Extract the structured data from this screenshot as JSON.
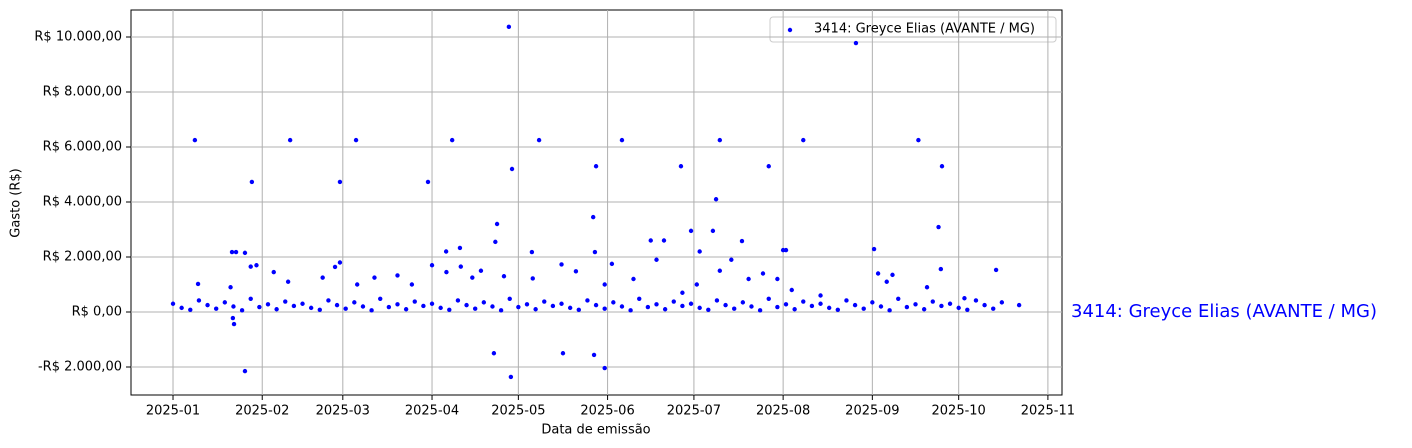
{
  "chart_data": {
    "type": "scatter",
    "xlabel": "Data de emissão",
    "ylabel": "Gasto (R$)",
    "annotation": "3414: Greyce Elias (AVANTE / MG)",
    "grid": true,
    "legend": "upper right",
    "xlim": [
      -14.6,
      308.9
    ],
    "ylim": [
      -3018,
      10982
    ],
    "xticks": [
      {
        "value": 0,
        "label": "2025-01"
      },
      {
        "value": 31,
        "label": "2025-02"
      },
      {
        "value": 59,
        "label": "2025-03"
      },
      {
        "value": 90,
        "label": "2025-04"
      },
      {
        "value": 120,
        "label": "2025-05"
      },
      {
        "value": 151,
        "label": "2025-06"
      },
      {
        "value": 181,
        "label": "2025-07"
      },
      {
        "value": 212,
        "label": "2025-08"
      },
      {
        "value": 243,
        "label": "2025-09"
      },
      {
        "value": 273,
        "label": "2025-10"
      },
      {
        "value": 304,
        "label": "2025-11"
      }
    ],
    "yticks": [
      {
        "value": -2000,
        "label": "-R$ 2.000,00"
      },
      {
        "value": 0,
        "label": "R$ 0,00"
      },
      {
        "value": 2000,
        "label": "R$ 2.000,00"
      },
      {
        "value": 4000,
        "label": "R$ 4.000,00"
      },
      {
        "value": 6000,
        "label": "R$ 6.000,00"
      },
      {
        "value": 8000,
        "label": "R$ 8.000,00"
      },
      {
        "value": 10000,
        "label": "R$ 10.000,00"
      }
    ],
    "series": [
      {
        "name": "3414: Greyce Elias (AVANTE / MG)",
        "color": "#0000ff",
        "x": [
          0,
          3,
          6,
          9,
          12,
          15,
          18,
          21,
          24,
          27,
          30,
          33,
          36,
          39,
          42,
          45,
          48,
          51,
          54,
          57,
          60,
          63,
          66,
          69,
          72,
          75,
          78,
          81,
          84,
          87,
          90,
          93,
          96,
          99,
          102,
          105,
          108,
          111,
          114,
          117,
          120,
          123,
          126,
          129,
          132,
          135,
          138,
          141,
          144,
          147,
          150,
          153,
          156,
          159,
          162,
          165,
          168,
          171,
          174,
          177,
          180,
          183,
          186,
          189,
          192,
          195,
          198,
          201,
          204,
          207,
          210,
          213,
          216,
          219,
          222,
          225,
          228,
          231,
          234,
          237,
          240,
          243,
          246,
          249,
          252,
          255,
          258,
          261,
          264,
          267,
          270,
          273,
          276,
          279,
          282,
          285,
          288,
          7.6,
          20.5,
          21.9,
          20.8,
          21.2,
          25,
          25,
          27.4,
          40.7,
          58,
          56.3,
          63.6,
          88.6,
          97,
          94.9,
          99.7,
          111.5,
          112.6,
          112,
          116.7,
          117.4,
          117.8,
          124.7,
          127.2,
          135.5,
          146,
          147,
          146.3,
          150,
          146.6,
          156,
          152.5,
          166,
          170.6,
          176.5,
          180,
          188.7,
          190,
          187.6,
          197.7,
          207,
          212,
          213,
          219,
          237.3,
          243.6,
          259,
          267.2,
          266,
          266.8,
          286,
          294,
          8.7,
          20,
          27,
          29,
          35,
          40,
          52,
          58,
          64,
          70,
          78,
          83,
          90,
          95,
          100,
          104,
          107,
          115,
          125,
          135,
          140,
          150,
          160,
          168,
          177,
          182,
          183,
          190,
          194,
          200,
          205,
          210,
          215,
          225,
          245,
          248,
          250,
          262,
          275
        ],
        "values": [
          300,
          150,
          80,
          420,
          250,
          120,
          350,
          200,
          60,
          480,
          180,
          280,
          100,
          380,
          220,
          300,
          150,
          80,
          420,
          250,
          120,
          350,
          200,
          60,
          480,
          180,
          280,
          100,
          380,
          220,
          300,
          150,
          80,
          420,
          250,
          120,
          350,
          200,
          60,
          480,
          180,
          280,
          100,
          380,
          220,
          300,
          150,
          80,
          420,
          250,
          120,
          350,
          200,
          60,
          480,
          180,
          280,
          100,
          380,
          220,
          300,
          150,
          80,
          420,
          250,
          120,
          350,
          200,
          60,
          480,
          180,
          280,
          100,
          380,
          220,
          300,
          150,
          80,
          420,
          250,
          120,
          350,
          200,
          60,
          480,
          180,
          280,
          100,
          380,
          220,
          300,
          150,
          80,
          420,
          250,
          120,
          350,
          6250,
          2180,
          2180,
          -220,
          -440,
          2150,
          -2150,
          4730,
          6250,
          4730,
          1640,
          6250,
          4730,
          6250,
          2200,
          2330,
          -1500,
          3200,
          2550,
          10370,
          -2360,
          5200,
          2180,
          6250,
          -1500,
          3450,
          5300,
          -1560,
          -2040,
          2180,
          6250,
          1750,
          2600,
          2600,
          5300,
          2950,
          4100,
          6250,
          2950,
          2580,
          5300,
          2250,
          2250,
          6250,
          9780,
          2290,
          6250,
          5300,
          3090,
          1560,
          1530,
          250,
          1020,
          900,
          1650,
          1700,
          1450,
          1100,
          1250,
          1800,
          1000,
          1250,
          1330,
          1000,
          1700,
          1450,
          1650,
          1250,
          1500,
          1300,
          1220,
          1730,
          1480,
          1000,
          1200,
          1900,
          700,
          1000,
          2200,
          1500,
          1900,
          1200,
          1400,
          1200,
          800,
          600,
          1400,
          1100,
          1350,
          900,
          500
        ]
      }
    ]
  }
}
